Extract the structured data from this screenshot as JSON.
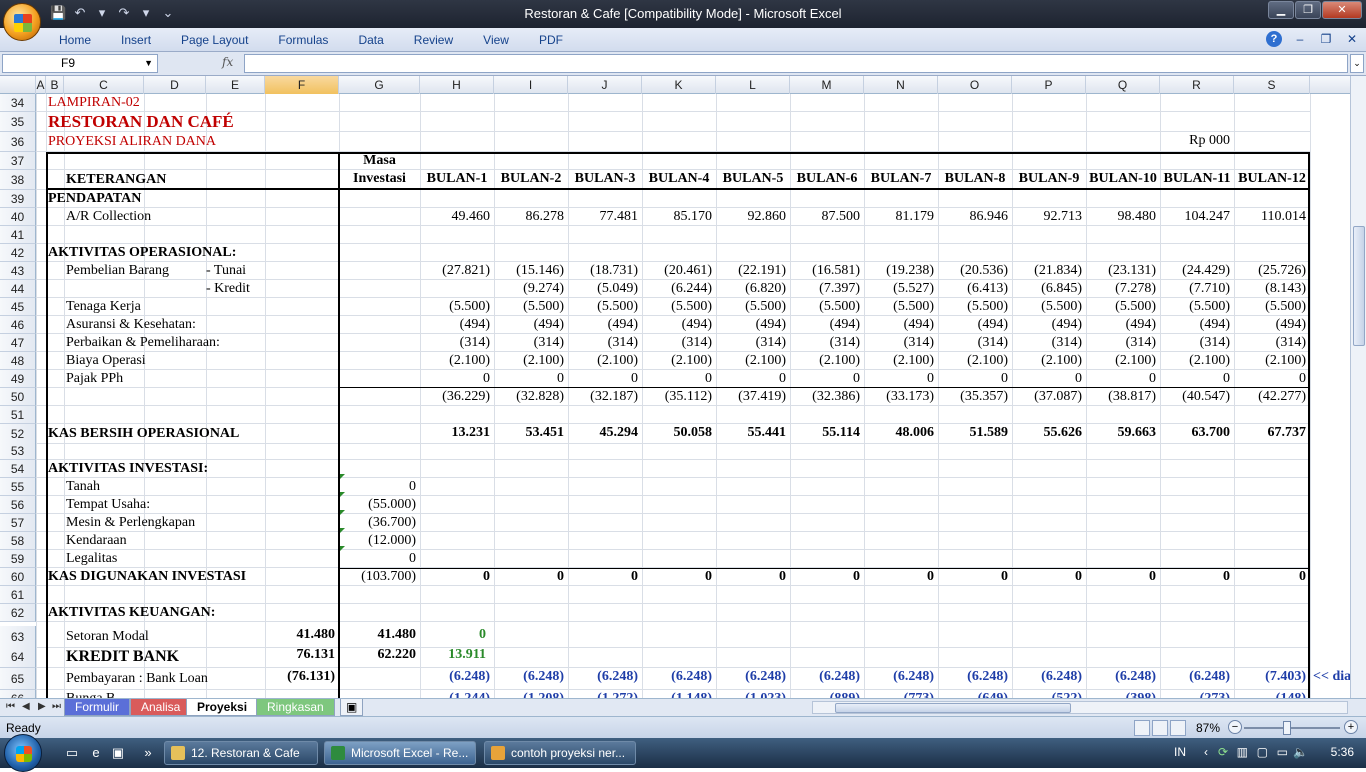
{
  "window": {
    "title": "Restoran & Cafe  [Compatibility Mode] - Microsoft Excel",
    "min": "▁",
    "max": "❐",
    "close": "✕"
  },
  "ribbon": {
    "tabs": [
      "Home",
      "Insert",
      "Page Layout",
      "Formulas",
      "Data",
      "Review",
      "View",
      "PDF"
    ],
    "help": "?",
    "min": "–",
    "restore": "❐",
    "close": "✕"
  },
  "formula_bar": {
    "name_box": "F9",
    "fx": "fx",
    "formula": ""
  },
  "columns": [
    "A",
    "B",
    "C",
    "D",
    "E",
    "F",
    "G",
    "H",
    "I",
    "J",
    "K",
    "L",
    "M",
    "N",
    "O",
    "P",
    "Q",
    "R",
    "S"
  ],
  "rows": [
    {
      "num": "34",
      "c": "LAMPIRAN-02"
    },
    {
      "num": "35",
      "c": "RESTORAN DAN CAFÉ"
    },
    {
      "num": "36",
      "c": "PROYEKSI ALIRAN DANA",
      "r": "Rp 000"
    },
    {
      "num": "37",
      "g": "Masa"
    },
    {
      "num": "38",
      "c": "KETERANGAN",
      "g": "Investasi",
      "months": [
        "BULAN-1",
        "BULAN-2",
        "BULAN-3",
        "BULAN-4",
        "BULAN-5",
        "BULAN-6",
        "BULAN-7",
        "BULAN-8",
        "BULAN-9",
        "BULAN-10",
        "BULAN-11",
        "BULAN-12"
      ]
    },
    {
      "num": "39",
      "c": "PENDAPATAN"
    },
    {
      "num": "40",
      "c": "A/R Collection",
      "v": [
        "49.460",
        "86.278",
        "77.481",
        "85.170",
        "92.860",
        "87.500",
        "81.179",
        "86.946",
        "92.713",
        "98.480",
        "104.247",
        "110.014"
      ]
    },
    {
      "num": "41"
    },
    {
      "num": "42",
      "c": "AKTIVITAS OPERASIONAL:"
    },
    {
      "num": "43",
      "c": "Pembelian Barang",
      "e": "- Tunai",
      "v": [
        "(27.821)",
        "(15.146)",
        "(18.731)",
        "(20.461)",
        "(22.191)",
        "(16.581)",
        "(19.238)",
        "(20.536)",
        "(21.834)",
        "(23.131)",
        "(24.429)",
        "(25.726)"
      ]
    },
    {
      "num": "44",
      "e": "- Kredit",
      "v": [
        "",
        "(9.274)",
        "(5.049)",
        "(6.244)",
        "(6.820)",
        "(7.397)",
        "(5.527)",
        "(6.413)",
        "(6.845)",
        "(7.278)",
        "(7.710)",
        "(8.143)"
      ]
    },
    {
      "num": "45",
      "c": "Tenaga Kerja",
      "v": [
        "(5.500)",
        "(5.500)",
        "(5.500)",
        "(5.500)",
        "(5.500)",
        "(5.500)",
        "(5.500)",
        "(5.500)",
        "(5.500)",
        "(5.500)",
        "(5.500)",
        "(5.500)"
      ]
    },
    {
      "num": "46",
      "c": "Asuransi & Kesehatan:",
      "v": [
        "(494)",
        "(494)",
        "(494)",
        "(494)",
        "(494)",
        "(494)",
        "(494)",
        "(494)",
        "(494)",
        "(494)",
        "(494)",
        "(494)"
      ]
    },
    {
      "num": "47",
      "c": "Perbaikan & Pemeliharaan:",
      "v": [
        "(314)",
        "(314)",
        "(314)",
        "(314)",
        "(314)",
        "(314)",
        "(314)",
        "(314)",
        "(314)",
        "(314)",
        "(314)",
        "(314)"
      ]
    },
    {
      "num": "48",
      "c": "Biaya Operasi",
      "v": [
        "(2.100)",
        "(2.100)",
        "(2.100)",
        "(2.100)",
        "(2.100)",
        "(2.100)",
        "(2.100)",
        "(2.100)",
        "(2.100)",
        "(2.100)",
        "(2.100)",
        "(2.100)"
      ]
    },
    {
      "num": "49",
      "c": "Pajak PPh",
      "v": [
        "0",
        "0",
        "0",
        "0",
        "0",
        "0",
        "0",
        "0",
        "0",
        "0",
        "0",
        "0"
      ]
    },
    {
      "num": "50",
      "v": [
        "(36.229)",
        "(32.828)",
        "(32.187)",
        "(35.112)",
        "(37.419)",
        "(32.386)",
        "(33.173)",
        "(35.357)",
        "(37.087)",
        "(38.817)",
        "(40.547)",
        "(42.277)"
      ]
    },
    {
      "num": "51"
    },
    {
      "num": "52",
      "c": "KAS BERSIH OPERASIONAL",
      "v": [
        "13.231",
        "53.451",
        "45.294",
        "50.058",
        "55.441",
        "55.114",
        "48.006",
        "51.589",
        "55.626",
        "59.663",
        "63.700",
        "67.737"
      ]
    },
    {
      "num": "53"
    },
    {
      "num": "54",
      "c": "AKTIVITAS INVESTASI:"
    },
    {
      "num": "55",
      "c": "Tanah",
      "g": "0"
    },
    {
      "num": "56",
      "c": "Tempat Usaha:",
      "g": "(55.000)"
    },
    {
      "num": "57",
      "c": "Mesin & Perlengkapan",
      "g": "(36.700)"
    },
    {
      "num": "58",
      "c": "Kendaraan",
      "g": "(12.000)"
    },
    {
      "num": "59",
      "c": "Legalitas",
      "g": "0"
    },
    {
      "num": "60",
      "c": "KAS DIGUNAKAN INVESTASI",
      "g": "(103.700)",
      "v": [
        "0",
        "0",
        "0",
        "0",
        "0",
        "0",
        "0",
        "0",
        "0",
        "0",
        "0",
        "0"
      ]
    },
    {
      "num": "61"
    },
    {
      "num": "62",
      "c": "AKTIVITAS KEUANGAN:"
    },
    {
      "num": "63",
      "c": "Setoran Modal",
      "f": "41.480",
      "g": "41.480",
      "h": "0"
    },
    {
      "num": "64",
      "c": "KREDIT BANK",
      "f": "76.131",
      "g": "62.220",
      "h": "13.911"
    },
    {
      "num": "65",
      "c": "Pembayaran : Bank Loan",
      "f": "(76.131)",
      "v": [
        "(6.248)",
        "(6.248)",
        "(6.248)",
        "(6.248)",
        "(6.248)",
        "(6.248)",
        "(6.248)",
        "(6.248)",
        "(6.248)",
        "(6.248)",
        "(6.248)",
        "(7.403)"
      ],
      "t": "<< dia"
    },
    {
      "num": "66",
      "c": "Bunga B",
      "v": [
        "(1.244)",
        "(1.208)",
        "(1.272)",
        "(1.148)",
        "(1.023)",
        "(889)",
        "(773)",
        "(649)",
        "(522)",
        "(398)",
        "(273)",
        "(148)"
      ]
    }
  ],
  "sheets": [
    "Formulir",
    "Analisa",
    "Proyeksi",
    "Ringkasan"
  ],
  "status": {
    "ready": "Ready",
    "zoom": "87%"
  },
  "taskbar": {
    "items": [
      "12. Restoran & Cafe",
      "Microsoft Excel - Re...",
      "contoh proyeksi ner..."
    ],
    "lang": "IN",
    "clock": "5:36"
  }
}
